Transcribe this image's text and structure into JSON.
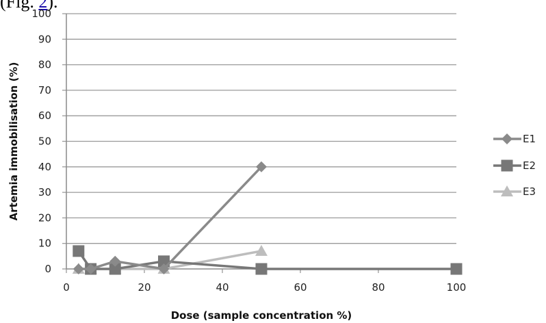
{
  "figure_ref": {
    "prefix": "(Fig. ",
    "link_text": "2",
    "suffix": ")."
  },
  "chart_data": {
    "type": "line",
    "xlabel": "Dose (sample concentration %)",
    "ylabel": "Artemia immobilisation (%)",
    "xlim": [
      0,
      100
    ],
    "ylim": [
      0,
      100
    ],
    "x_ticks": [
      0,
      20,
      40,
      60,
      80,
      100
    ],
    "y_ticks": [
      0,
      10,
      20,
      30,
      40,
      50,
      60,
      70,
      80,
      90,
      100
    ],
    "grid": "horizontal",
    "legend_position": "right",
    "series": [
      {
        "name": "E1",
        "marker": "diamond",
        "color": "#8a8a8a",
        "x": [
          3.125,
          6.25,
          12.5,
          25,
          50
        ],
        "y": [
          0,
          0,
          3,
          0,
          40
        ]
      },
      {
        "name": "E2",
        "marker": "square",
        "color": "#777777",
        "x": [
          3.125,
          6.25,
          12.5,
          25,
          50,
          100
        ],
        "y": [
          7,
          0,
          0,
          3,
          0,
          0
        ]
      },
      {
        "name": "E3",
        "marker": "triangle",
        "color": "#bdbdbd",
        "x": [
          3.125,
          6.25,
          12.5,
          25,
          50
        ],
        "y": [
          0,
          0,
          0,
          0,
          7
        ]
      }
    ]
  }
}
